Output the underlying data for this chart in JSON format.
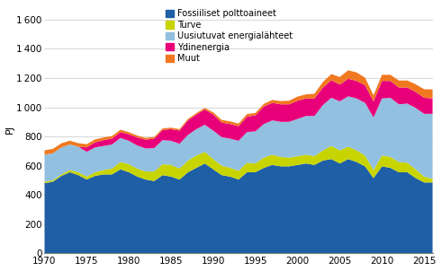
{
  "years": [
    1970,
    1971,
    1972,
    1973,
    1974,
    1975,
    1976,
    1977,
    1978,
    1979,
    1980,
    1981,
    1982,
    1983,
    1984,
    1985,
    1986,
    1987,
    1988,
    1989,
    1990,
    1991,
    1992,
    1993,
    1994,
    1995,
    1996,
    1997,
    1998,
    1999,
    2000,
    2001,
    2002,
    2003,
    2004,
    2005,
    2006,
    2007,
    2008,
    2009,
    2010,
    2011,
    2012,
    2013,
    2014,
    2015,
    2016
  ],
  "fossiiliset": [
    480,
    490,
    530,
    555,
    535,
    505,
    530,
    540,
    540,
    575,
    555,
    525,
    505,
    495,
    535,
    525,
    505,
    555,
    585,
    615,
    575,
    535,
    525,
    505,
    555,
    555,
    585,
    605,
    595,
    595,
    605,
    615,
    605,
    635,
    645,
    615,
    645,
    625,
    595,
    515,
    595,
    585,
    555,
    555,
    515,
    485,
    485
  ],
  "turve": [
    10,
    10,
    10,
    15,
    20,
    20,
    25,
    30,
    40,
    50,
    55,
    55,
    55,
    65,
    75,
    80,
    75,
    80,
    85,
    80,
    70,
    65,
    60,
    60,
    65,
    60,
    70,
    70,
    65,
    60,
    60,
    60,
    60,
    70,
    90,
    90,
    85,
    80,
    75,
    55,
    75,
    75,
    70,
    65,
    60,
    40,
    25
  ],
  "uusiutuvat": [
    185,
    185,
    185,
    175,
    175,
    170,
    170,
    165,
    165,
    165,
    160,
    158,
    158,
    160,
    165,
    165,
    170,
    175,
    180,
    185,
    195,
    195,
    200,
    205,
    210,
    220,
    230,
    235,
    240,
    245,
    255,
    265,
    275,
    310,
    330,
    335,
    345,
    355,
    360,
    360,
    390,
    405,
    395,
    405,
    420,
    430,
    445
  ],
  "ydinenergia": [
    0,
    0,
    0,
    0,
    0,
    30,
    35,
    40,
    40,
    40,
    45,
    55,
    60,
    65,
    70,
    80,
    90,
    100,
    100,
    105,
    110,
    100,
    100,
    100,
    105,
    110,
    120,
    120,
    120,
    120,
    125,
    120,
    120,
    120,
    120,
    115,
    120,
    120,
    120,
    110,
    120,
    115,
    115,
    110,
    110,
    110,
    105
  ],
  "muut": [
    30,
    30,
    28,
    26,
    24,
    22,
    20,
    18,
    18,
    16,
    14,
    13,
    12,
    11,
    10,
    10,
    10,
    10,
    10,
    10,
    15,
    18,
    18,
    18,
    18,
    16,
    18,
    20,
    22,
    25,
    28,
    28,
    32,
    38,
    42,
    52,
    58,
    58,
    52,
    42,
    42,
    42,
    48,
    48,
    52,
    58,
    62
  ],
  "colors": {
    "fossiiliset": "#1f5fa6",
    "turve": "#c8d400",
    "uusiutuvat": "#92c0e0",
    "ydinenergia": "#e8007a",
    "muut": "#f07820"
  },
  "ylabel": "PJ",
  "ylim": [
    0,
    1700
  ],
  "yticks": [
    0,
    200,
    400,
    600,
    800,
    1000,
    1200,
    1400,
    1600
  ],
  "xticks": [
    1970,
    1975,
    1980,
    1985,
    1990,
    1995,
    2000,
    2005,
    2010,
    2015
  ],
  "legend_labels": [
    "Fossiiliset polttoaineet",
    "Turve",
    "Uusiutuvat energialähteet",
    "Ydinenergia",
    "Muut"
  ],
  "grid_color": "#c8c8c8",
  "grid_linestyle": "-",
  "grid_linewidth": 0.5
}
